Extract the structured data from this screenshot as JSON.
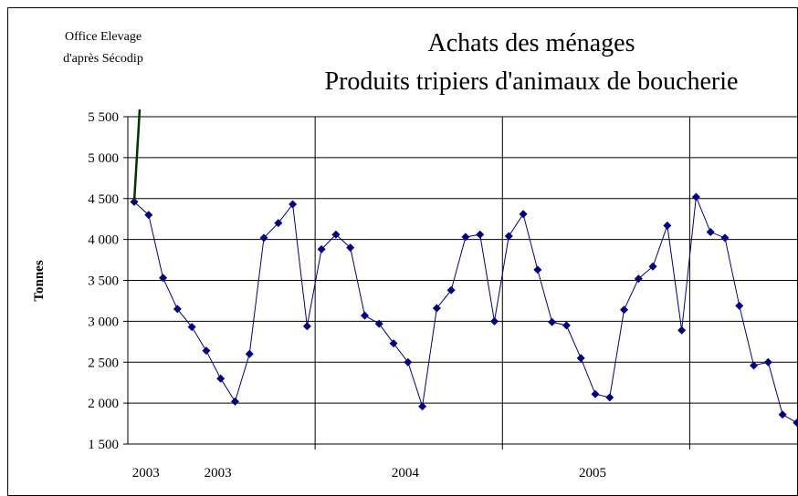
{
  "chart_data": {
    "type": "line",
    "source": [
      "Office Elevage",
      "d'après Sécodip"
    ],
    "title": [
      "Achats des ménages",
      "Produits tripiers d'animaux de boucherie"
    ],
    "ylabel": "Tonnes",
    "categories": [
      null,
      "2003",
      null,
      null,
      null,
      null,
      "2003",
      null,
      null,
      null,
      null,
      null,
      null,
      null,
      null,
      null,
      null,
      null,
      null,
      "2004",
      null,
      null,
      null,
      null,
      null,
      null,
      null,
      null,
      null,
      null,
      null,
      null,
      "2005",
      null,
      null,
      null,
      null,
      null,
      null,
      null,
      null,
      null,
      null,
      null,
      null,
      null,
      null
    ],
    "series": [
      {
        "color": "#000080",
        "values": [
          4460,
          4300,
          3530,
          3150,
          2930,
          2640,
          2300,
          2020,
          2600,
          4020,
          4200,
          4430,
          2940,
          3880,
          4060,
          3900,
          3070,
          2970,
          2730,
          2500,
          1960,
          3160,
          3380,
          4030,
          4060,
          3000,
          4040,
          4310,
          3630,
          2990,
          2950,
          2550,
          2110,
          2070,
          3140,
          3520,
          3670,
          4170,
          2890,
          4520,
          4090,
          4020,
          3190,
          2460,
          2500,
          1860,
          1760
        ]
      }
    ],
    "ylim": [
      1500,
      5500
    ],
    "yticks": [
      {
        "value": 1500,
        "label": "1 500"
      },
      {
        "value": 2000,
        "label": "2 000"
      },
      {
        "value": 2500,
        "label": "2 500"
      },
      {
        "value": 3000,
        "label": "3 000"
      },
      {
        "value": 3500,
        "label": "3 500"
      },
      {
        "value": 4000,
        "label": "4 000"
      },
      {
        "value": 4500,
        "label": "4 500"
      },
      {
        "value": 5000,
        "label": "5 000"
      },
      {
        "value": 5500,
        "label": "5 500"
      }
    ],
    "grid": true
  }
}
